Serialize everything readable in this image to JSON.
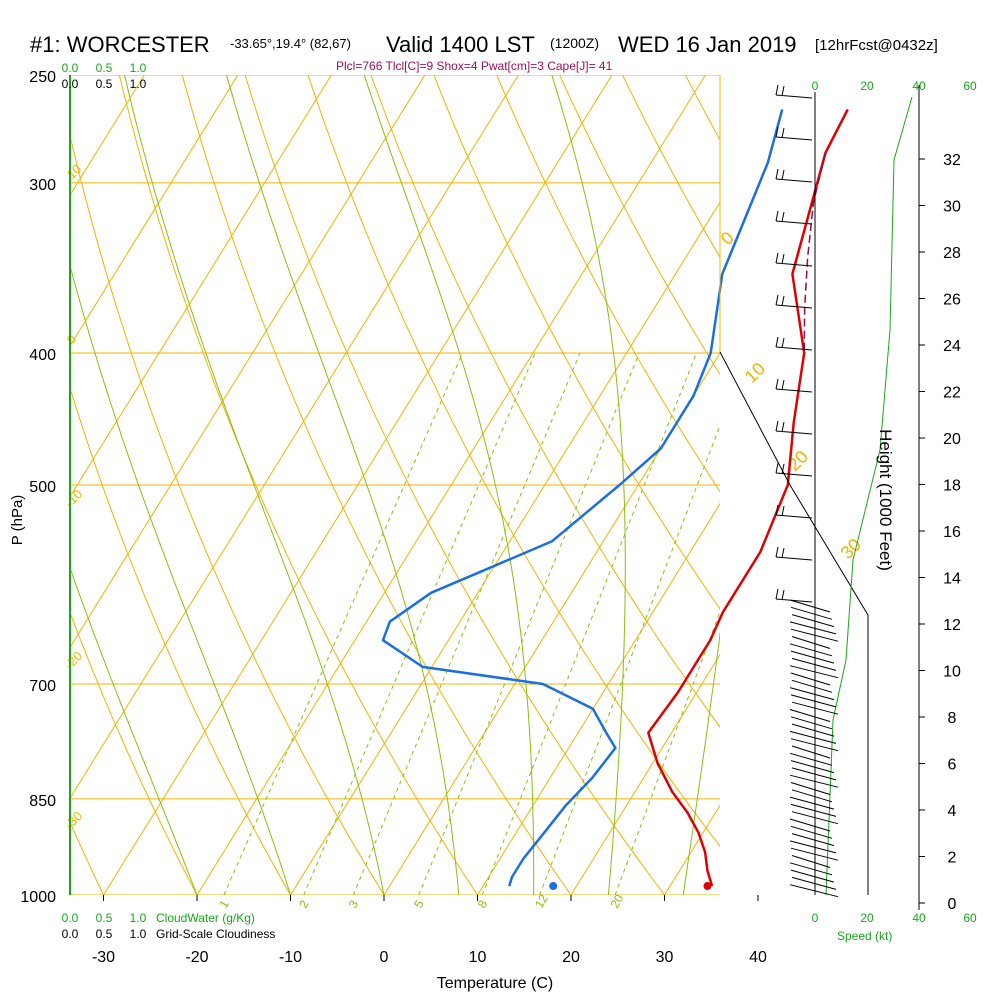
{
  "header": {
    "station": "#1: WORCESTER",
    "coords": "-33.65°,19.4° (82,67)",
    "valid": "Valid 1400 LST",
    "utc": "(1200Z)",
    "date": "WED 16 Jan 2019",
    "forecast": "[12hrFcst@0432z]",
    "indices": "Plcl=766 Tlcl[C]=9 Shox=4 Pwat[cm]=3 Cape[J]= 41"
  },
  "colors": {
    "isotherm": "#f0b400",
    "dry_adiabat": "#f0b400",
    "moist_adiabat": "#88c010",
    "mixing_ratio": "#88c010",
    "temperature": "#e00000",
    "dewpoint": "#1a6fe0",
    "parcel": "#8a1050",
    "cloud_scale": "#18a818",
    "indices": "#a0105a"
  },
  "labels": {
    "p_axis": "P (hPa)",
    "t_axis": "Temperature (C)",
    "height_axis": "Height (1000 Feet)",
    "cloud_water": "CloudWater (g/Kg)",
    "cloudiness": "Grid-Scale Cloudiness",
    "speed": "Speed (kt)"
  },
  "scales": {
    "cloud_ticks": [
      "0.0",
      "0.5",
      "1.0"
    ],
    "speed_ticks": [
      "0",
      "20",
      "40",
      "60"
    ]
  },
  "chart_data": {
    "type": "line",
    "title": "#1: WORCESTER",
    "xlabel": "Temperature (C)",
    "ylabel": "P (hPa)",
    "xlim": [
      -30,
      48
    ],
    "ylim": [
      1000,
      250
    ],
    "x_ticks": [
      "-30",
      "-20",
      "-10",
      "0",
      "10",
      "20",
      "30",
      "40"
    ],
    "p_ticks": [
      "250",
      "300",
      "400",
      "500",
      "700",
      "850",
      "1000"
    ],
    "height_ticks": [
      "0",
      "2",
      "4",
      "6",
      "8",
      "10",
      "12",
      "14",
      "16",
      "18",
      "20",
      "22",
      "24",
      "26",
      "28",
      "30",
      "32"
    ],
    "isotherm_labels": [
      "0",
      "10",
      "20",
      "30",
      "-10",
      "-20",
      "-30",
      "10",
      "0",
      "-10",
      "-20",
      "-30"
    ],
    "mixing_ratio_labels": [
      "1",
      "2",
      "3",
      "5",
      "8",
      "12",
      "20"
    ],
    "series": [
      {
        "name": "Temperature",
        "points": [
          [
            -2.5,
            265
          ],
          [
            -2.0,
            285
          ],
          [
            2.5,
            350
          ],
          [
            9.0,
            400
          ],
          [
            12.5,
            450
          ],
          [
            16.0,
            500
          ],
          [
            17.5,
            560
          ],
          [
            17.5,
            620
          ],
          [
            18.0,
            650
          ],
          [
            18.0,
            680
          ],
          [
            18.0,
            710
          ],
          [
            17.5,
            760
          ],
          [
            20.5,
            800
          ],
          [
            24.0,
            840
          ],
          [
            27.0,
            870
          ],
          [
            29.5,
            900
          ],
          [
            31.5,
            930
          ],
          [
            33.0,
            960
          ],
          [
            34.5,
            985
          ]
        ]
      },
      {
        "name": "Dewpoint",
        "points": [
          [
            -9.5,
            265
          ],
          [
            -7.5,
            290
          ],
          [
            -5.0,
            350
          ],
          [
            -1.0,
            400
          ],
          [
            0.0,
            430
          ],
          [
            0.0,
            470
          ],
          [
            -2.0,
            500
          ],
          [
            -5.5,
            550
          ],
          [
            -15.0,
            600
          ],
          [
            -17.5,
            630
          ],
          [
            -17.0,
            650
          ],
          [
            -11.0,
            680
          ],
          [
            3.0,
            700
          ],
          [
            10.0,
            730
          ],
          [
            13.0,
            760
          ],
          [
            15.0,
            780
          ],
          [
            14.5,
            820
          ],
          [
            13.5,
            860
          ],
          [
            13.0,
            900
          ],
          [
            12.5,
            940
          ],
          [
            12.5,
            970
          ],
          [
            12.8,
            985
          ]
        ]
      },
      {
        "name": "Parcel",
        "points": [
          [
            -2.0,
            285
          ],
          [
            0.0,
            310
          ],
          [
            3.0,
            340
          ],
          [
            6.0,
            370
          ],
          [
            9.0,
            400
          ]
        ]
      }
    ],
    "surface_points": {
      "temperature": 34.0,
      "dewpoint": 17.5
    },
    "height_profile_kft": [
      [
        0,
        985
      ],
      [
        2,
        940
      ],
      [
        4,
        880
      ],
      [
        6,
        820
      ],
      [
        8,
        760
      ],
      [
        10,
        700
      ],
      [
        12,
        650
      ],
      [
        14,
        600
      ],
      [
        16,
        550
      ],
      [
        18,
        500
      ],
      [
        20,
        460
      ],
      [
        22,
        420
      ],
      [
        24,
        385
      ],
      [
        26,
        350
      ],
      [
        28,
        320
      ],
      [
        30,
        295
      ],
      [
        32,
        270
      ]
    ]
  }
}
